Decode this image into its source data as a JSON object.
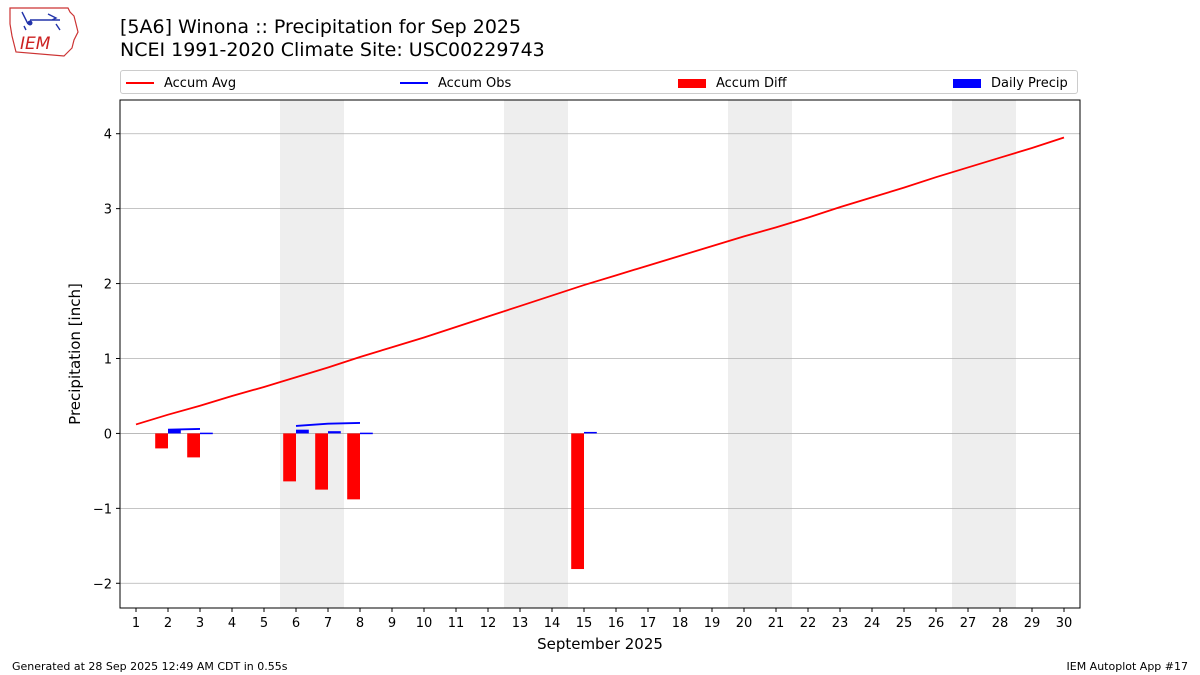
{
  "header": {
    "title_line1": "[5A6] Winona :: Precipitation for Sep 2025",
    "title_line2": "NCEI 1991-2020 Climate Site: USC00229743"
  },
  "logo": {
    "text": "IEM"
  },
  "footer": {
    "left": "Generated at 28 Sep 2025 12:49 AM CDT in 0.55s",
    "right": "IEM Autoplot App #17"
  },
  "colors": {
    "accum_avg": "#ff0000",
    "accum_obs": "#0000ff",
    "accum_diff": "#ff0000",
    "daily_precip": "#0000ff",
    "weekend_shade": "#eeeeee",
    "grid": "#b0b0b0"
  },
  "chart_data": {
    "type": "bar",
    "xlabel": "September 2025",
    "ylabel": "Precipitation [inch]",
    "xlim": [
      0.5,
      30.5
    ],
    "ylim": [
      -2.33,
      4.45
    ],
    "yticks": [
      -2,
      -1,
      0,
      1,
      2,
      3,
      4
    ],
    "ytick_labels": [
      "−2",
      "−1",
      "0",
      "1",
      "2",
      "3",
      "4"
    ],
    "x": [
      1,
      2,
      3,
      4,
      5,
      6,
      7,
      8,
      9,
      10,
      11,
      12,
      13,
      14,
      15,
      16,
      17,
      18,
      19,
      20,
      21,
      22,
      23,
      24,
      25,
      26,
      27,
      28,
      29,
      30
    ],
    "weekend_days": [
      6,
      7,
      13,
      14,
      20,
      21,
      27,
      28
    ],
    "grid": "y",
    "legend_placement": "top",
    "legend": [
      "Accum Avg",
      "Accum Obs",
      "Accum Diff",
      "Daily Precip"
    ],
    "series": [
      {
        "name": "Accum Avg",
        "type": "line",
        "x": [
          1,
          2,
          3,
          4,
          5,
          6,
          7,
          8,
          9,
          10,
          11,
          12,
          13,
          14,
          15,
          16,
          17,
          18,
          19,
          20,
          21,
          22,
          23,
          24,
          25,
          26,
          27,
          28,
          29,
          30
        ],
        "values": [
          0.12,
          0.25,
          0.37,
          0.5,
          0.62,
          0.75,
          0.88,
          1.02,
          1.15,
          1.28,
          1.42,
          1.56,
          1.7,
          1.84,
          1.98,
          2.11,
          2.24,
          2.37,
          2.5,
          2.63,
          2.75,
          2.88,
          3.02,
          3.15,
          3.28,
          3.42,
          3.55,
          3.68,
          3.81,
          3.95
        ]
      },
      {
        "name": "Accum Obs",
        "type": "line",
        "segments": [
          {
            "x": [
              2,
              3
            ],
            "values": [
              0.05,
              0.06
            ]
          },
          {
            "x": [
              6,
              7,
              8
            ],
            "values": [
              0.1,
              0.13,
              0.14
            ]
          }
        ]
      },
      {
        "name": "Accum Diff",
        "type": "bar",
        "x": [
          1.8,
          2.8,
          5.8,
          6.8,
          7.8,
          14.8
        ],
        "values": [
          -0.2,
          -0.32,
          -0.64,
          -0.75,
          -0.88,
          -1.81
        ]
      },
      {
        "name": "Daily Precip",
        "type": "bar",
        "x": [
          2.2,
          3.2,
          6.2,
          7.2,
          8.2,
          15.2
        ],
        "values": [
          0.05,
          0.01,
          0.05,
          0.03,
          0.01,
          0.02
        ]
      }
    ]
  }
}
